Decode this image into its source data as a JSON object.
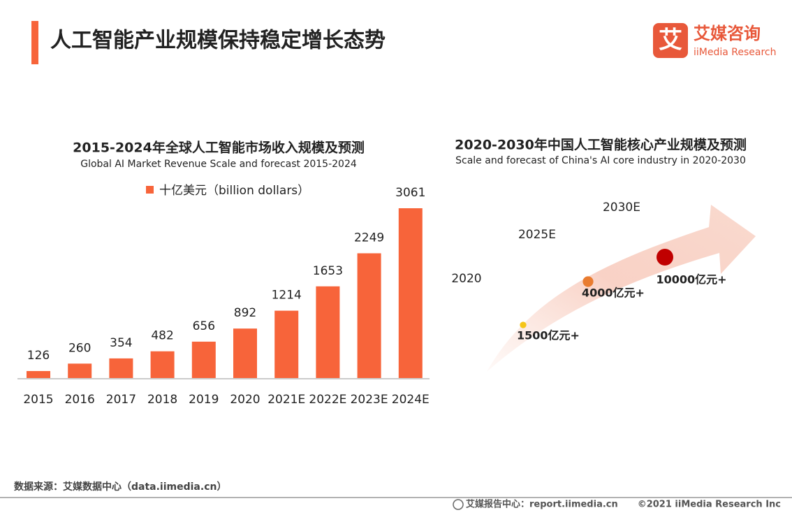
{
  "header": {
    "title": "人工智能产业规模保持稳定增长态势",
    "logo_cn": "艾媒咨询",
    "logo_en": "iiMedia Research",
    "logo_icon": "艾"
  },
  "chart_data": [
    {
      "type": "bar",
      "title": "2015-2024年全球人工智能市场收入规模及预测",
      "subtitle": "Global AI Market Revenue Scale and forecast 2015-2024",
      "categories": [
        "2015",
        "2016",
        "2017",
        "2018",
        "2019",
        "2020",
        "2021E",
        "2022E",
        "2023E",
        "2024E"
      ],
      "series": [
        {
          "name": "十亿美元（billion dollars）",
          "color": "#f7643a",
          "values": [
            126,
            260,
            354,
            482,
            656,
            892,
            1214,
            1653,
            2249,
            3061
          ]
        }
      ]
    },
    {
      "type": "bubble",
      "title": "2020-2030年中国人工智能核心产业规模及预测",
      "subtitle": "Scale and forecast of China's AI core industry in 2020-2030",
      "categories": [
        "2020",
        "2025E",
        "2030E"
      ],
      "values": [
        1500,
        4000,
        10000
      ],
      "value_labels": [
        "1500亿元+",
        "4000亿元+",
        "10000亿元+"
      ],
      "colors": [
        "#f5c518",
        "#e97c30",
        "#c00000"
      ]
    }
  ],
  "source": "数据来源：艾媒数据中心（data.iimedia.cn）",
  "footer": {
    "report": "艾媒报告中心：report.iimedia.cn",
    "copyright": "©2021  iiMedia Research  Inc"
  }
}
